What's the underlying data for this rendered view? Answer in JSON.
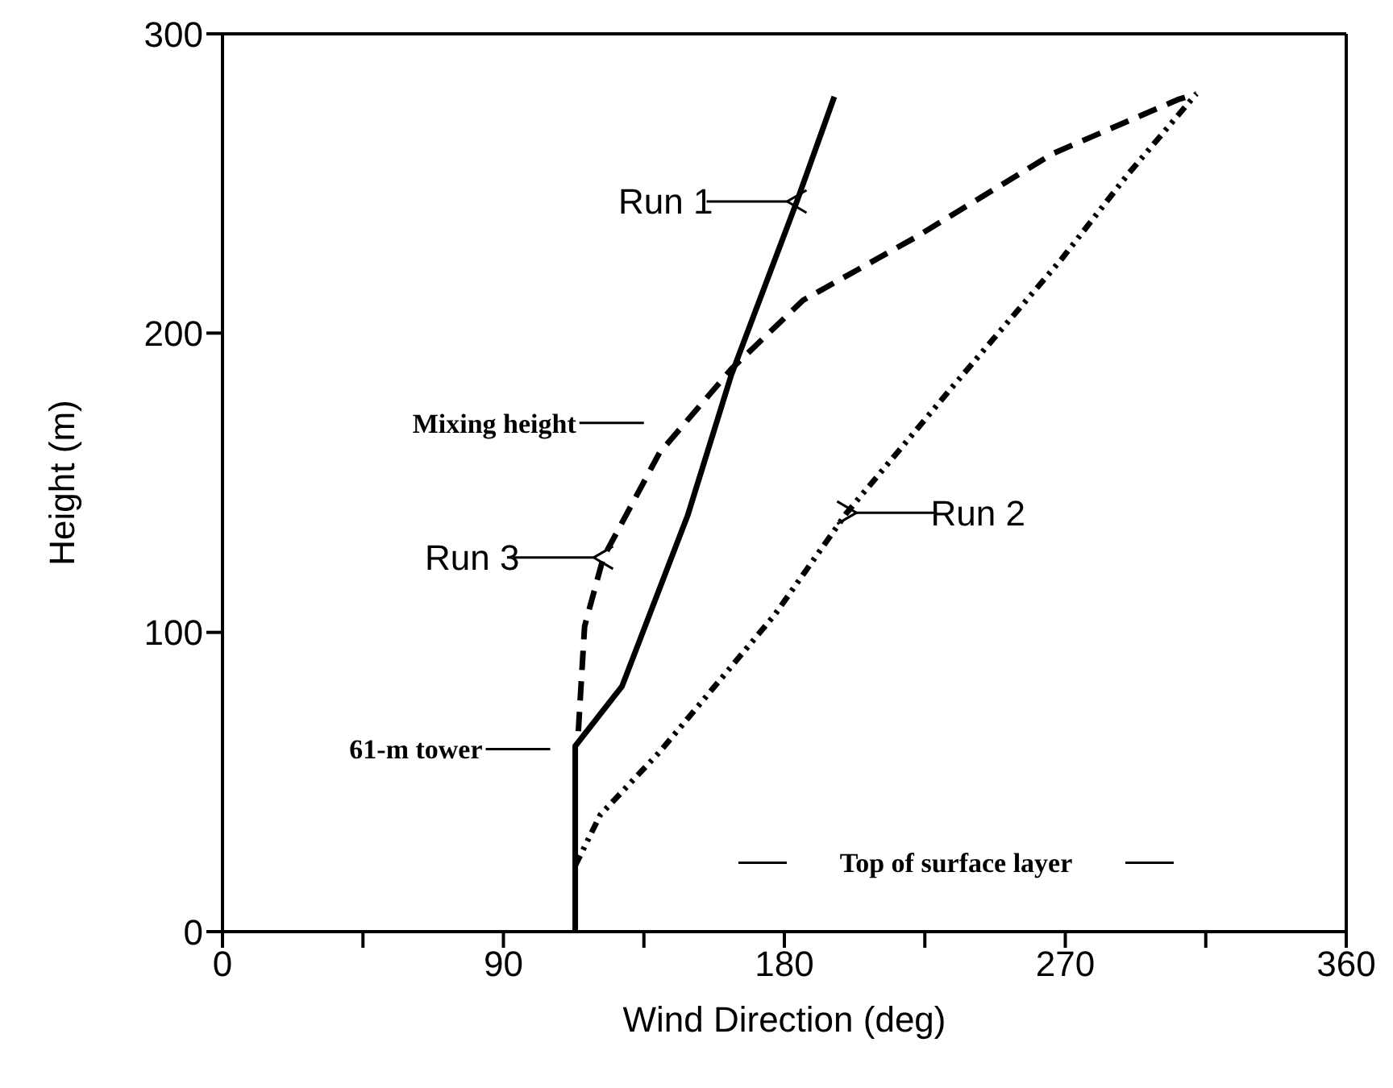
{
  "chart_data": {
    "type": "line",
    "xlabel": "Wind Direction (deg)",
    "ylabel": "Height  (m)",
    "xlim": [
      0,
      360
    ],
    "xticks": [
      0,
      {
        "value": 45,
        "label": null
      },
      90,
      {
        "value": 135,
        "label": null
      },
      180,
      {
        "value": 225,
        "label": null
      },
      270,
      {
        "value": 315,
        "label": null
      },
      360
    ],
    "ylim": [
      0,
      300
    ],
    "yticks": [
      0,
      100,
      200,
      300
    ],
    "grid": false,
    "legend": "top left",
    "series": [
      {
        "name": "Run 1",
        "color": "#000000",
        "line_style": "solid",
        "x": [
          113,
          113,
          128,
          149,
          163,
          184,
          196
        ],
        "values": [
          0,
          62,
          82,
          139,
          186,
          244,
          279
        ]
      },
      {
        "name": "Run 2",
        "color": "#000000",
        "line_style": "dotted",
        "x": [
          113,
          121,
          140,
          177,
          200,
          233,
          269,
          290,
          312
        ],
        "values": [
          22,
          39,
          60,
          106,
          140,
          181,
          225,
          253,
          280
        ]
      },
      {
        "name": "Run 3",
        "color": "#000000",
        "line_style": "dashed",
        "x": [
          114,
          116,
          122,
          140,
          163,
          186,
          222,
          266,
          306,
          312
        ],
        "values": [
          67,
          102,
          125,
          160,
          188,
          211,
          232,
          260,
          278,
          280
        ]
      }
    ],
    "annotations": [
      "Mixing height",
      "61-m tower",
      "Top of surface layer"
    ]
  }
}
